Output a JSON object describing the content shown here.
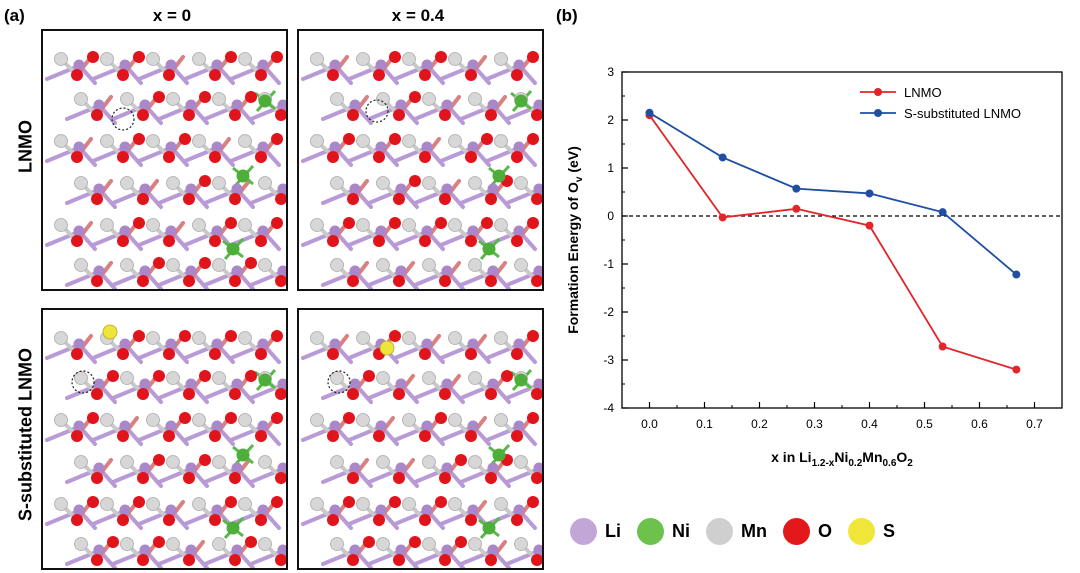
{
  "figure": {
    "panel_a_label": "(a)",
    "panel_b_label": "(b)",
    "columns": [
      "x = 0",
      "x = 0.4"
    ],
    "rows": [
      "LNMO",
      "S-substituted LNMO"
    ]
  },
  "atom_legend": [
    {
      "label": "Li",
      "color": "#c3a6d8"
    },
    {
      "label": "Ni",
      "color": "#6cc24a"
    },
    {
      "label": "Mn",
      "color": "#cfcfcf"
    },
    {
      "label": "O",
      "color": "#e3181b"
    },
    {
      "label": "S",
      "color": "#f0e63a"
    }
  ],
  "colors": {
    "li": "#a987c9",
    "li_bond": "#b89ad6",
    "ni": "#4dae3a",
    "mn": "#d7d7d7",
    "o": "#e2141b",
    "s": "#efe43a",
    "series_lnmo": "#e0262a",
    "series_s": "#1f4ea3"
  },
  "chart_data": {
    "type": "line",
    "ylabel": "Formation Energy of O",
    "ylabel_sub": "v",
    "ylabel_unit": " (eV)",
    "xlabel_parts": [
      "x in Li",
      "1.2-x",
      "Ni",
      "0.2",
      "Mn",
      "0.6",
      "O",
      "2"
    ],
    "xlim": [
      -0.05,
      0.75
    ],
    "ylim": [
      -4,
      3
    ],
    "xticks": [
      "0.0",
      "0.1",
      "0.2",
      "0.3",
      "0.4",
      "0.5",
      "0.6",
      "0.7"
    ],
    "yticks": [
      "-4",
      "-3",
      "-2",
      "-1",
      "0",
      "1",
      "2",
      "3"
    ],
    "reference_line_y": 0,
    "legend_position": "top-right",
    "series": [
      {
        "name": "LNMO",
        "color": "#e0262a",
        "x": [
          0.0,
          0.133,
          0.267,
          0.4,
          0.533,
          0.667
        ],
        "y": [
          2.1,
          -0.03,
          0.15,
          -0.2,
          -2.72,
          -3.2
        ]
      },
      {
        "name": "S-substituted LNMO",
        "color": "#1f4ea3",
        "x": [
          0.0,
          0.133,
          0.267,
          0.4,
          0.533,
          0.667
        ],
        "y": [
          2.15,
          1.22,
          0.57,
          0.47,
          0.08,
          -1.22
        ]
      }
    ]
  }
}
